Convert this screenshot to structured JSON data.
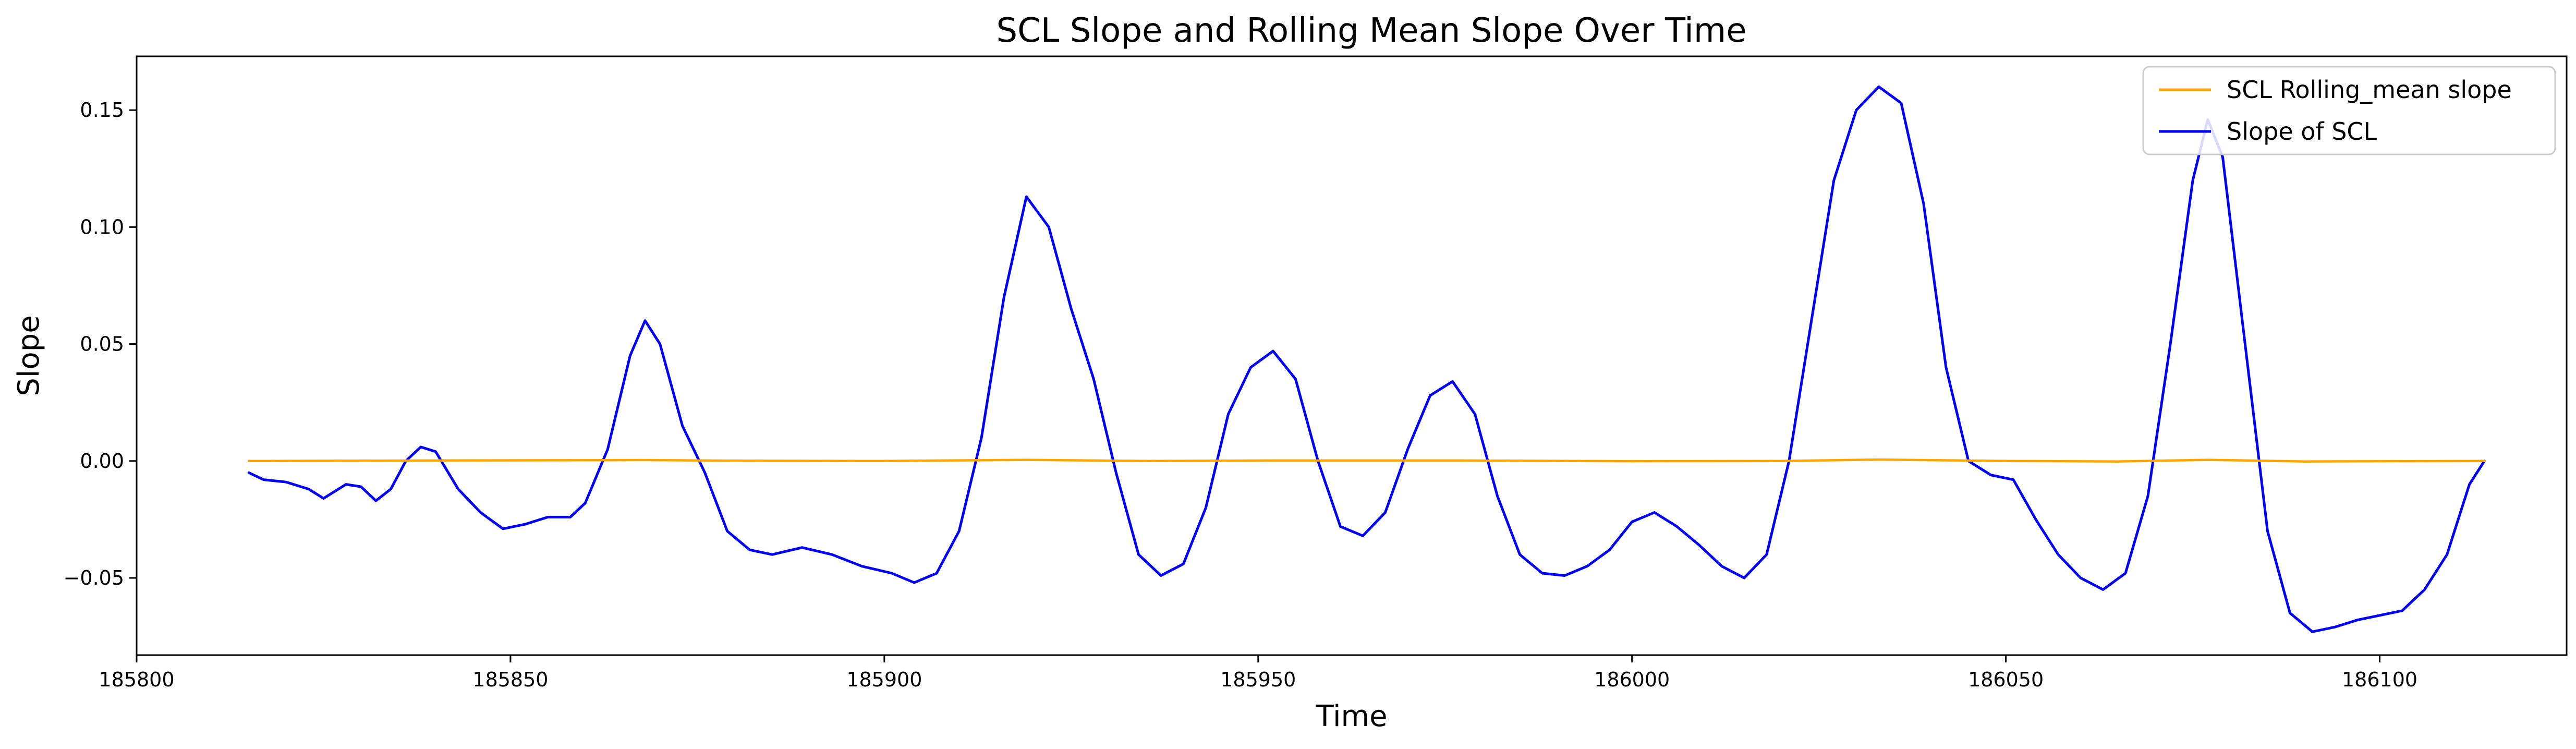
{
  "chart_data": {
    "type": "line",
    "title": "SCL Slope and Rolling Mean Slope Over Time",
    "xlabel": "Time",
    "ylabel": "Slope",
    "xlim": [
      185800,
      186125
    ],
    "ylim": [
      -0.083,
      0.173
    ],
    "xticks": [
      185800,
      185850,
      185900,
      185950,
      186000,
      186050,
      186100
    ],
    "yticks": [
      -0.05,
      0.0,
      0.05,
      0.1,
      0.15
    ],
    "ytick_labels": [
      "−0.05",
      "0.00",
      "0.05",
      "0.10",
      "0.15"
    ],
    "grid": false,
    "legend": "top-right",
    "series": [
      {
        "name": "SCL Rolling_mean slope",
        "color": "#ffa500",
        "points": [
          [
            185815,
            0.0
          ],
          [
            185840,
            0.0002
          ],
          [
            185868,
            0.0004
          ],
          [
            185880,
            0.0001
          ],
          [
            185900,
            0.0
          ],
          [
            185919,
            0.0005
          ],
          [
            185935,
            0.0
          ],
          [
            185952,
            0.0002
          ],
          [
            185976,
            0.0002
          ],
          [
            186000,
            -0.0001
          ],
          [
            186020,
            0.0
          ],
          [
            186033,
            0.0006
          ],
          [
            186050,
            0.0
          ],
          [
            186065,
            -0.0002
          ],
          [
            186077,
            0.0005
          ],
          [
            186090,
            -0.0002
          ],
          [
            186114,
            0.0
          ]
        ]
      },
      {
        "name": "Slope of SCL",
        "color": "#0000ff",
        "points": [
          [
            185815,
            -0.005
          ],
          [
            185817,
            -0.008
          ],
          [
            185820,
            -0.009
          ],
          [
            185823,
            -0.012
          ],
          [
            185825,
            -0.016
          ],
          [
            185828,
            -0.01
          ],
          [
            185830,
            -0.011
          ],
          [
            185832,
            -0.017
          ],
          [
            185834,
            -0.012
          ],
          [
            185836,
            0.0
          ],
          [
            185838,
            0.006
          ],
          [
            185840,
            0.004
          ],
          [
            185843,
            -0.012
          ],
          [
            185846,
            -0.022
          ],
          [
            185849,
            -0.029
          ],
          [
            185852,
            -0.027
          ],
          [
            185855,
            -0.024
          ],
          [
            185858,
            -0.024
          ],
          [
            185860,
            -0.018
          ],
          [
            185863,
            0.005
          ],
          [
            185866,
            0.045
          ],
          [
            185868,
            0.06
          ],
          [
            185870,
            0.05
          ],
          [
            185873,
            0.015
          ],
          [
            185876,
            -0.005
          ],
          [
            185879,
            -0.03
          ],
          [
            185882,
            -0.038
          ],
          [
            185885,
            -0.04
          ],
          [
            185889,
            -0.037
          ],
          [
            185893,
            -0.04
          ],
          [
            185897,
            -0.045
          ],
          [
            185901,
            -0.048
          ],
          [
            185904,
            -0.052
          ],
          [
            185907,
            -0.048
          ],
          [
            185910,
            -0.03
          ],
          [
            185913,
            0.01
          ],
          [
            185916,
            0.07
          ],
          [
            185919,
            0.113
          ],
          [
            185922,
            0.1
          ],
          [
            185925,
            0.065
          ],
          [
            185928,
            0.035
          ],
          [
            185931,
            -0.005
          ],
          [
            185934,
            -0.04
          ],
          [
            185937,
            -0.049
          ],
          [
            185940,
            -0.044
          ],
          [
            185943,
            -0.02
          ],
          [
            185946,
            0.02
          ],
          [
            185949,
            0.04
          ],
          [
            185952,
            0.047
          ],
          [
            185955,
            0.035
          ],
          [
            185958,
            0.0
          ],
          [
            185961,
            -0.028
          ],
          [
            185964,
            -0.032
          ],
          [
            185967,
            -0.022
          ],
          [
            185970,
            0.005
          ],
          [
            185973,
            0.028
          ],
          [
            185976,
            0.034
          ],
          [
            185979,
            0.02
          ],
          [
            185982,
            -0.015
          ],
          [
            185985,
            -0.04
          ],
          [
            185988,
            -0.048
          ],
          [
            185991,
            -0.049
          ],
          [
            185994,
            -0.045
          ],
          [
            185997,
            -0.038
          ],
          [
            186000,
            -0.026
          ],
          [
            186003,
            -0.022
          ],
          [
            186006,
            -0.028
          ],
          [
            186009,
            -0.036
          ],
          [
            186012,
            -0.045
          ],
          [
            186015,
            -0.05
          ],
          [
            186018,
            -0.04
          ],
          [
            186021,
            0.0
          ],
          [
            186024,
            0.06
          ],
          [
            186027,
            0.12
          ],
          [
            186030,
            0.15
          ],
          [
            186033,
            0.16
          ],
          [
            186036,
            0.153
          ],
          [
            186039,
            0.11
          ],
          [
            186042,
            0.04
          ],
          [
            186045,
            0.0
          ],
          [
            186048,
            -0.006
          ],
          [
            186051,
            -0.008
          ],
          [
            186054,
            -0.025
          ],
          [
            186057,
            -0.04
          ],
          [
            186060,
            -0.05
          ],
          [
            186063,
            -0.055
          ],
          [
            186066,
            -0.048
          ],
          [
            186069,
            -0.015
          ],
          [
            186072,
            0.05
          ],
          [
            186075,
            0.12
          ],
          [
            186077,
            0.146
          ],
          [
            186079,
            0.13
          ],
          [
            186082,
            0.05
          ],
          [
            186085,
            -0.03
          ],
          [
            186088,
            -0.065
          ],
          [
            186091,
            -0.073
          ],
          [
            186094,
            -0.071
          ],
          [
            186097,
            -0.068
          ],
          [
            186100,
            -0.066
          ],
          [
            186103,
            -0.064
          ],
          [
            186106,
            -0.055
          ],
          [
            186109,
            -0.04
          ],
          [
            186112,
            -0.01
          ],
          [
            186114,
            0.0
          ]
        ]
      }
    ]
  }
}
